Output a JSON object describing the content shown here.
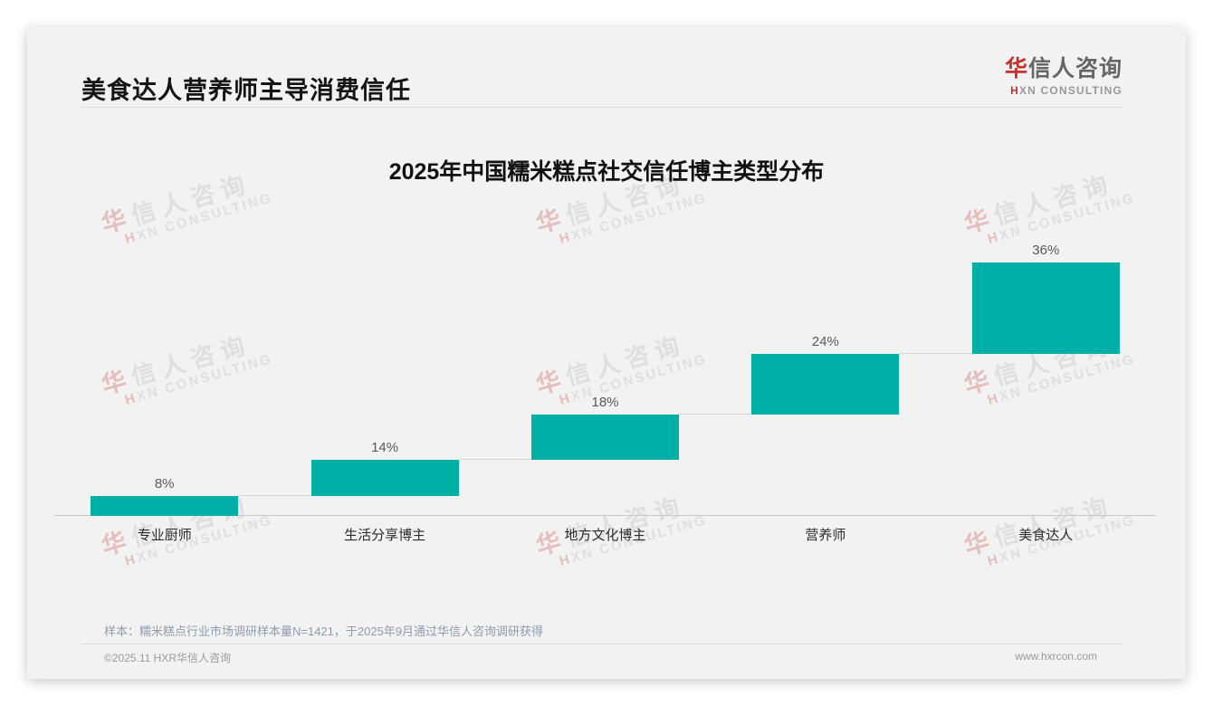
{
  "page": {
    "title": "美食达人营养师主导消费信任"
  },
  "logo": {
    "cn_first": "华",
    "cn_rest": "信人咨询",
    "en_first": "H",
    "en_rest": "XN CONSULTING"
  },
  "watermark": {
    "cn_first": "华",
    "cn_rest": "信人咨询",
    "en_first": "H",
    "en_rest": "XN CONSULTING"
  },
  "chart_data": {
    "type": "bar",
    "subtype": "waterfall",
    "title": "2025年中国糯米糕点社交信任博主类型分布",
    "categories": [
      "专业厨师",
      "生活分享博主",
      "地方文化博主",
      "营养师",
      "美食达人"
    ],
    "values": [
      8,
      14,
      18,
      24,
      36
    ],
    "labels": [
      "8%",
      "14%",
      "18%",
      "24%",
      "36%"
    ],
    "cumulative_start": [
      0,
      8,
      22,
      40,
      64
    ],
    "cumulative_end": [
      8,
      22,
      40,
      64,
      100
    ],
    "unit": "%",
    "bar_color": "#00b0a6",
    "ylim": [
      0,
      100
    ],
    "grid": false,
    "legend": false,
    "connector_color": "#d6d6d6"
  },
  "footnote": {
    "sample_note": "样本：糯米糕点行业市场调研样本量N=1421，于2025年9月通过华信人咨询调研获得"
  },
  "footer": {
    "copyright": "©2025.11 HXR华信人咨询",
    "website": "www.hxrcon.com"
  },
  "colors": {
    "accent": "#00b0a6",
    "brand_red": "#c9302c",
    "card_background": "#f2f2f2"
  }
}
